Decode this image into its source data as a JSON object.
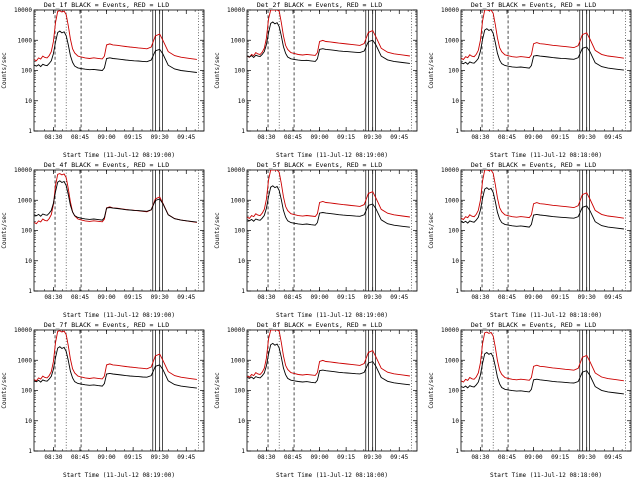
{
  "page": {
    "background": "#ffffff",
    "description": "3x3 grid of detector count-rate time profiles, log scale, black Events and red LLD curves"
  },
  "colors": {
    "lld": "#cc0000",
    "events": "#000000",
    "axis": "#000000"
  },
  "chart_data": {
    "type": "line",
    "layout": "3x3-grid",
    "yscale": "log",
    "ylim": [
      1,
      10000
    ],
    "y_tick_labels": [
      "1",
      "10",
      "100",
      "1000",
      "10000"
    ],
    "x_range_hours": [
      8.317,
      9.917
    ],
    "x_tick_hours": [
      8.5,
      8.75,
      9.0,
      9.25,
      9.5,
      9.75
    ],
    "x_tick_labels": [
      "08:30",
      "08:45",
      "09:00",
      "09:15",
      "09:30",
      "09:45"
    ],
    "x_hours": [
      8.32,
      8.34,
      8.36,
      8.38,
      8.4,
      8.42,
      8.44,
      8.46,
      8.48,
      8.5,
      8.52,
      8.54,
      8.56,
      8.58,
      8.6,
      8.62,
      8.64,
      8.66,
      8.68,
      8.7,
      8.73,
      8.76,
      8.8,
      8.84,
      8.88,
      8.92,
      8.96,
      8.98,
      9.0,
      9.03,
      9.06,
      9.1,
      9.14,
      9.18,
      9.22,
      9.26,
      9.3,
      9.34,
      9.38,
      9.42,
      9.46,
      9.5,
      9.53,
      9.58,
      9.64,
      9.7,
      9.78,
      9.85
    ],
    "base_red_y": [
      230,
      210,
      260,
      240,
      300,
      270,
      260,
      310,
      420,
      900,
      4000,
      9000,
      9500,
      8600,
      9200,
      7000,
      3000,
      1100,
      520,
      380,
      300,
      280,
      260,
      250,
      262,
      252,
      242,
      300,
      700,
      760,
      700,
      680,
      650,
      620,
      600,
      580,
      560,
      540,
      520,
      600,
      1400,
      1600,
      1000,
      420,
      310,
      275,
      252,
      232
    ],
    "base_black_y": [
      150,
      140,
      155,
      135,
      160,
      150,
      145,
      170,
      210,
      360,
      900,
      1800,
      2000,
      1750,
      1900,
      1400,
      700,
      310,
      185,
      140,
      122,
      116,
      110,
      106,
      109,
      104,
      100,
      122,
      250,
      262,
      250,
      242,
      232,
      222,
      216,
      210,
      206,
      200,
      196,
      220,
      450,
      500,
      350,
      150,
      112,
      100,
      92,
      86
    ],
    "vlines": [
      {
        "style": "dashed",
        "x": 8.515
      },
      {
        "style": "dashed",
        "x": 8.76
      },
      {
        "style": "dotted",
        "x": 8.62
      },
      {
        "style": "dotted",
        "x": 9.865
      },
      {
        "style": "solid",
        "x": 9.435
      },
      {
        "style": "solid",
        "x": 9.462
      },
      {
        "style": "solid",
        "x": 9.5
      },
      {
        "style": "solid",
        "x": 9.527
      }
    ],
    "plots": [
      {
        "name": "det_1f",
        "title": "Det_1f BLACK = Events, RED = LLD",
        "xlabel": "Start Time (11-Jul-12 08:19:00)",
        "ylabel": "Counts/sec",
        "red_scale": 1.0,
        "black_scale": 1.0,
        "series": [
          {
            "name": "LLD",
            "color": "#cc0000"
          },
          {
            "name": "Events",
            "color": "#000000"
          }
        ]
      },
      {
        "name": "det_2f",
        "title": "Det_2f BLACK = Events, RED = LLD",
        "xlabel": "Start Time (11-Jul-12 08:19:00)",
        "ylabel": "Counts/sec",
        "red_scale": 1.3,
        "black_scale": 2.0,
        "series": [
          {
            "name": "LLD",
            "color": "#cc0000"
          },
          {
            "name": "Events",
            "color": "#000000"
          }
        ]
      },
      {
        "name": "det_3f",
        "title": "Det_3f BLACK = Events, RED = LLD",
        "xlabel": "Start Time (11-Jul-12 08:18:00)",
        "ylabel": "Counts/sec",
        "red_scale": 1.1,
        "black_scale": 1.2,
        "series": [
          {
            "name": "LLD",
            "color": "#cc0000"
          },
          {
            "name": "Events",
            "color": "#000000"
          }
        ]
      },
      {
        "name": "det_4f",
        "title": "Det_4f BLACK = Events, RED = LLD",
        "xlabel": "Start Time (11-Jul-12 08:19:00)",
        "ylabel": "Counts/sec",
        "red_scale": 0.8,
        "black_scale": 2.2,
        "series": [
          {
            "name": "LLD",
            "color": "#cc0000"
          },
          {
            "name": "Events",
            "color": "#000000"
          }
        ]
      },
      {
        "name": "det_5f",
        "title": "Det_5f BLACK = Events, RED = LLD",
        "xlabel": "Start Time (11-Jul-12 08:19:00)",
        "ylabel": "Counts/sec",
        "red_scale": 1.2,
        "black_scale": 1.5,
        "series": [
          {
            "name": "LLD",
            "color": "#cc0000"
          },
          {
            "name": "Events",
            "color": "#000000"
          }
        ]
      },
      {
        "name": "det_6f",
        "title": "Det_6f BLACK = Events, RED = LLD",
        "xlabel": "Start Time (11-Jul-12 08:18:00)",
        "ylabel": "Counts/sec",
        "red_scale": 1.1,
        "black_scale": 1.3,
        "series": [
          {
            "name": "LLD",
            "color": "#cc0000"
          },
          {
            "name": "Events",
            "color": "#000000"
          }
        ]
      },
      {
        "name": "det_7f",
        "title": "Det_7f BLACK = Events, RED = LLD",
        "xlabel": "Start Time (11-Jul-12 08:19:00)",
        "ylabel": "Counts/sec",
        "red_scale": 1.0,
        "black_scale": 1.4,
        "series": [
          {
            "name": "LLD",
            "color": "#cc0000"
          },
          {
            "name": "Events",
            "color": "#000000"
          }
        ]
      },
      {
        "name": "det_8f",
        "title": "Det_8f BLACK = Events, RED = LLD",
        "xlabel": "Start Time (11-Jul-12 08:18:00)",
        "ylabel": "Counts/sec",
        "red_scale": 1.3,
        "black_scale": 1.8,
        "series": [
          {
            "name": "LLD",
            "color": "#cc0000"
          },
          {
            "name": "Events",
            "color": "#000000"
          }
        ]
      },
      {
        "name": "det_9f",
        "title": "Det_9f BLACK = Events, RED = LLD",
        "xlabel": "Start Time (11-Jul-12 08:18:00)",
        "ylabel": "Counts/sec",
        "red_scale": 0.9,
        "black_scale": 0.9,
        "series": [
          {
            "name": "LLD",
            "color": "#cc0000"
          },
          {
            "name": "Events",
            "color": "#000000"
          }
        ]
      }
    ]
  }
}
